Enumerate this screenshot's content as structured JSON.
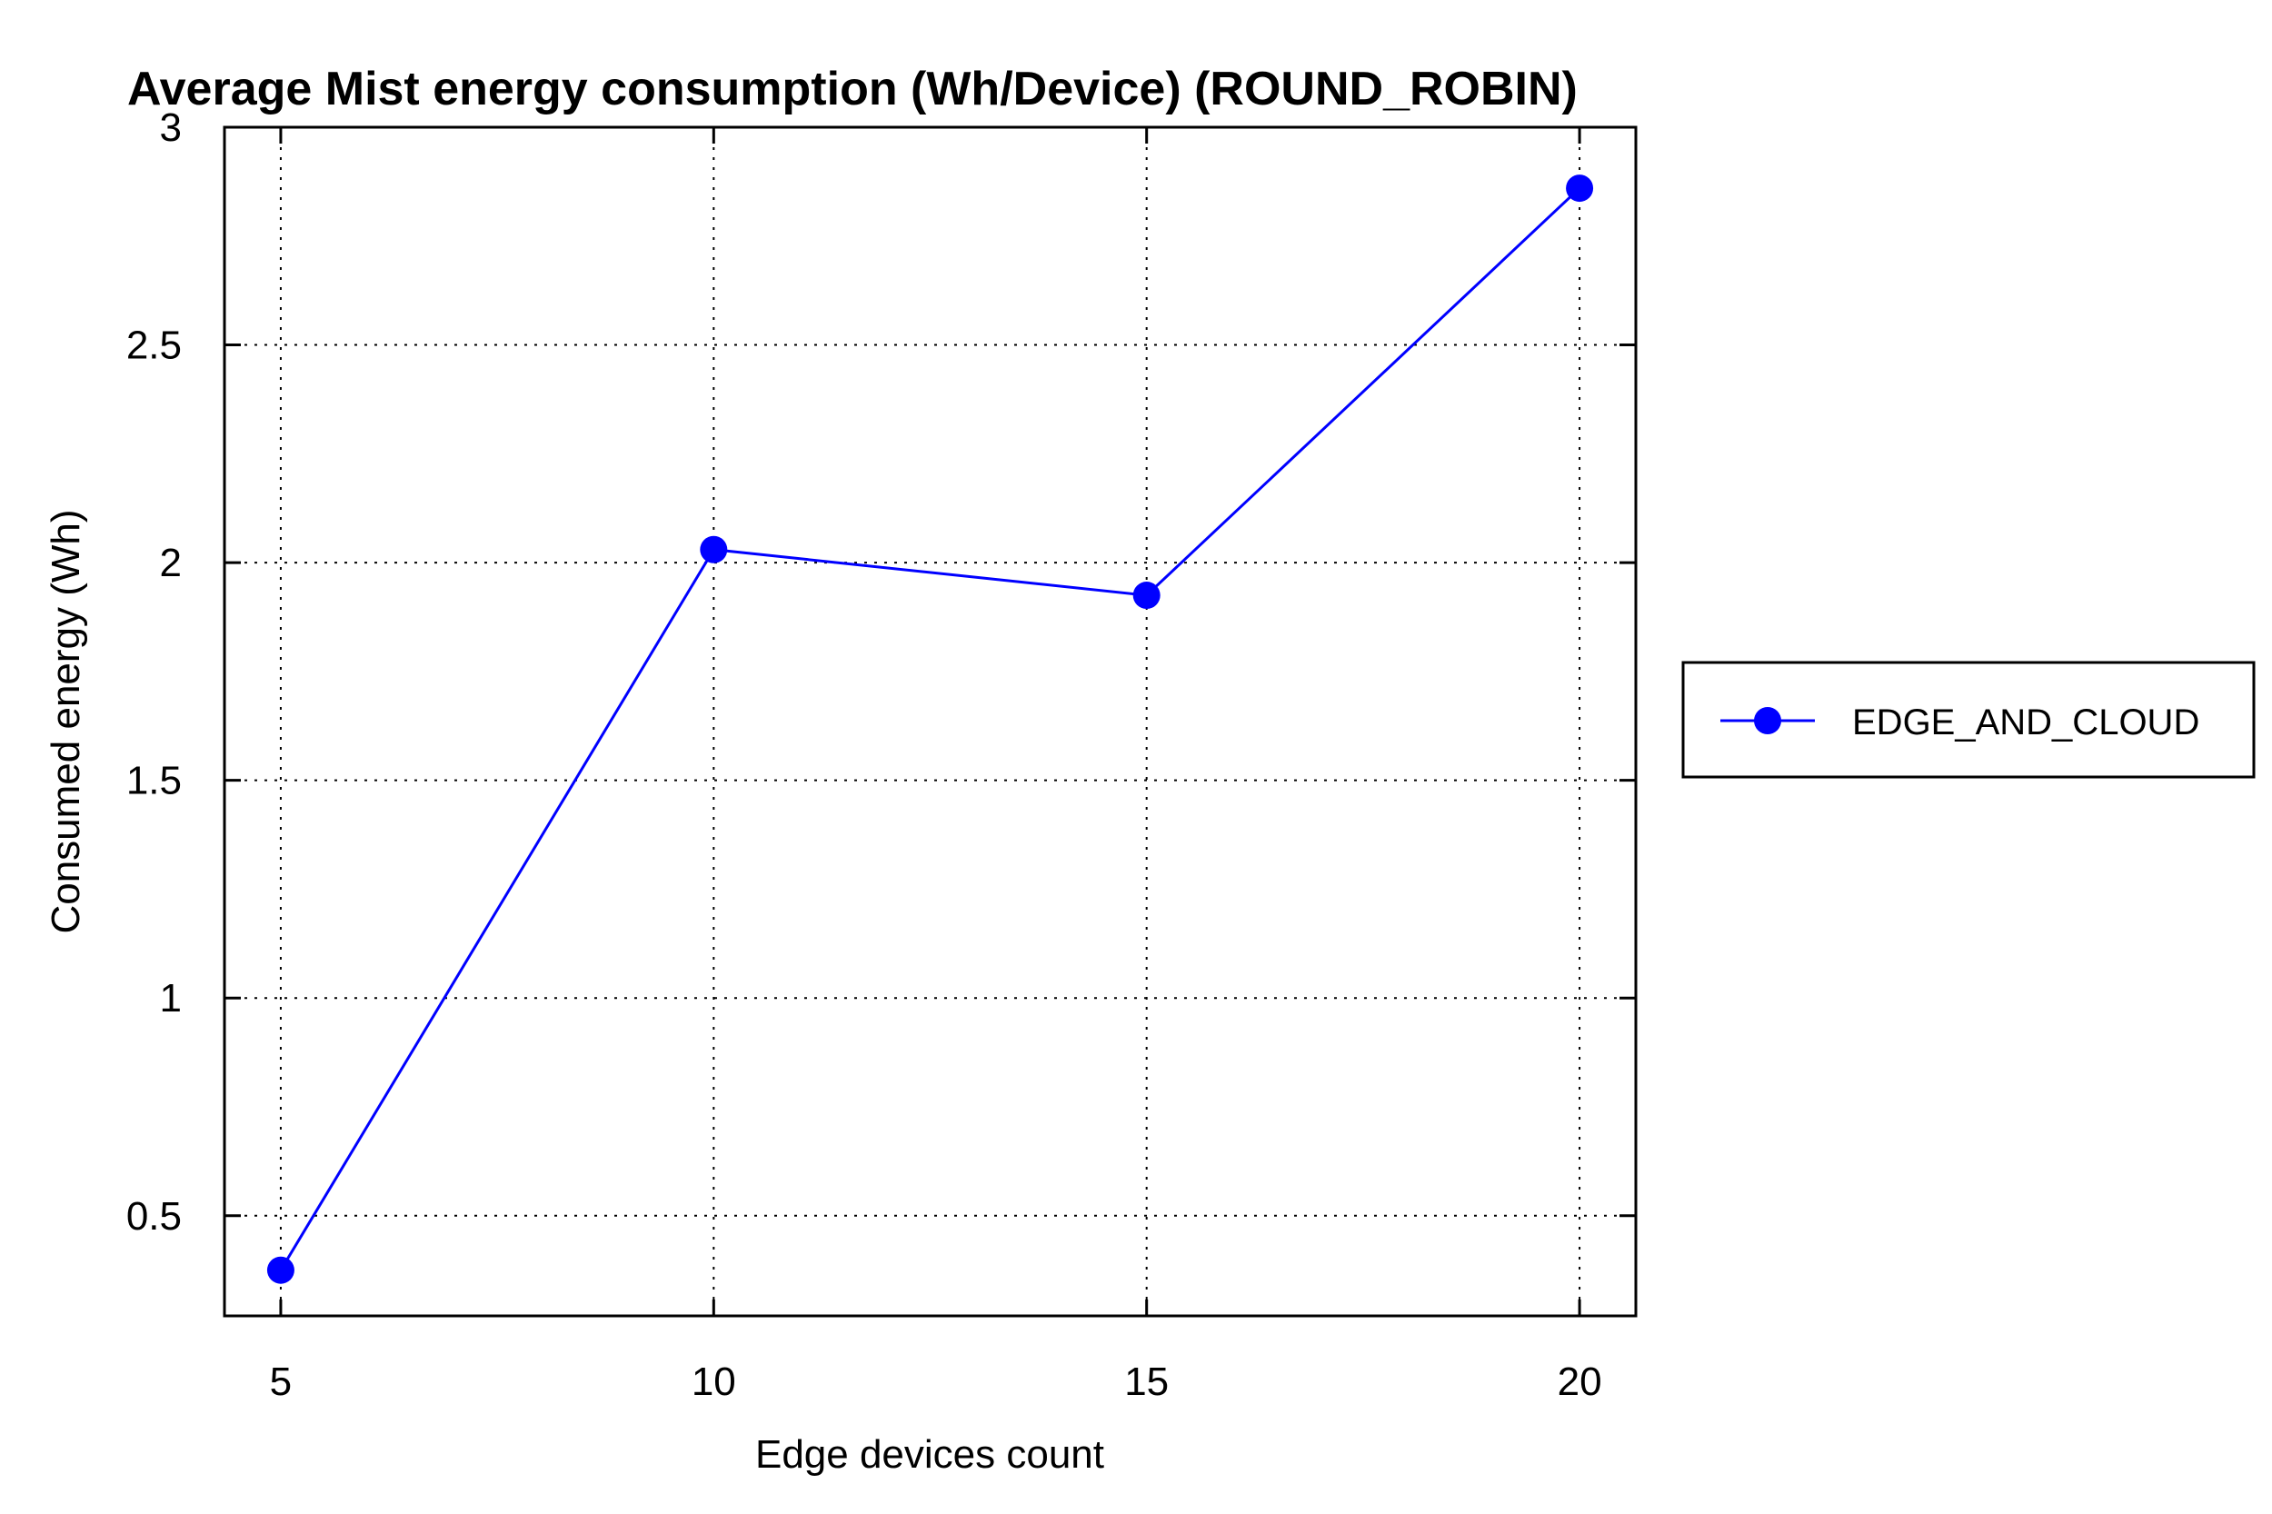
{
  "chart_data": {
    "type": "line",
    "title": "Average Mist energy consumption (Wh/Device) (ROUND_ROBIN)",
    "xlabel": "Edge devices count",
    "ylabel": "Consumed energy (Wh)",
    "x": [
      5,
      10,
      15,
      20
    ],
    "xticks": [
      "5",
      "10",
      "15",
      "20"
    ],
    "yticks": [
      "0.5",
      "1",
      "1.5",
      "2",
      "2.5",
      "3"
    ],
    "xlim": [
      4.35,
      20.65
    ],
    "ylim": [
      0.27,
      3.0
    ],
    "grid": true,
    "legend_position": "right",
    "series": [
      {
        "name": "EDGE_AND_CLOUD",
        "color": "#0000ff",
        "marker": "circle",
        "values": [
          0.375,
          2.03,
          1.925,
          2.86
        ]
      }
    ]
  }
}
